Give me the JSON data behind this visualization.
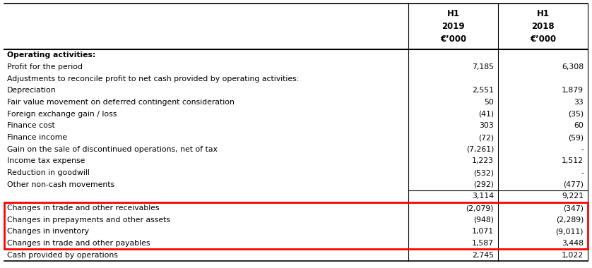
{
  "col2_header": "H1\n2019\n€’000",
  "col3_header": "H1\n2018\n€’000",
  "rows": [
    {
      "label": "Operating activities:",
      "v1": "",
      "v2": "",
      "bold": true
    },
    {
      "label": "Profit for the period",
      "v1": "7,185",
      "v2": "6,308",
      "bold": false
    },
    {
      "label": "Adjustments to reconcile profit to net cash provided by operating activities:",
      "v1": "",
      "v2": "",
      "bold": false
    },
    {
      "label": "Depreciation",
      "v1": "2,551",
      "v2": "1,879",
      "bold": false
    },
    {
      "label": "Fair value movement on deferred contingent consideration",
      "v1": "50",
      "v2": "33",
      "bold": false
    },
    {
      "label": "Foreign exchange gain / loss",
      "v1": "(41)",
      "v2": "(35)",
      "bold": false
    },
    {
      "label": "Finance cost",
      "v1": "303",
      "v2": "60",
      "bold": false
    },
    {
      "label": "Finance income",
      "v1": "(72)",
      "v2": "(59)",
      "bold": false
    },
    {
      "label": "Gain on the sale of discontinued operations, net of tax",
      "v1": "(7,261)",
      "v2": "-",
      "bold": false
    },
    {
      "label": "Income tax expense",
      "v1": "1,223",
      "v2": "1,512",
      "bold": false
    },
    {
      "label": "Reduction in goodwill",
      "v1": "(532)",
      "v2": "-",
      "bold": false
    },
    {
      "label": "Other non-cash movements",
      "v1": "(292)",
      "v2": "(477)",
      "bold": false
    },
    {
      "label": "",
      "v1": "3,114",
      "v2": "9,221",
      "bold": false,
      "top_line": true
    },
    {
      "label": "Changes in trade and other receivables",
      "v1": "(2,079)",
      "v2": "(347)",
      "bold": false,
      "highlight": true
    },
    {
      "label": "Changes in prepayments and other assets",
      "v1": "(948)",
      "v2": "(2,289)",
      "bold": false,
      "highlight": true
    },
    {
      "label": "Changes in inventory",
      "v1": "1,071",
      "v2": "(9,011)",
      "bold": false,
      "highlight": true
    },
    {
      "label": "Changes in trade and other payables",
      "v1": "1,587",
      "v2": "3,448",
      "bold": false,
      "highlight": true
    },
    {
      "label": "Cash provided by operations",
      "v1": "2,745",
      "v2": "1,022",
      "bold": false,
      "top_line": true
    }
  ],
  "highlight_rows": [
    13,
    14,
    15,
    16
  ],
  "highlight_color": "#ff0000",
  "bg_color": "#ffffff",
  "text_color": "#000000",
  "font_size": 7.8,
  "header_font_size": 8.5
}
